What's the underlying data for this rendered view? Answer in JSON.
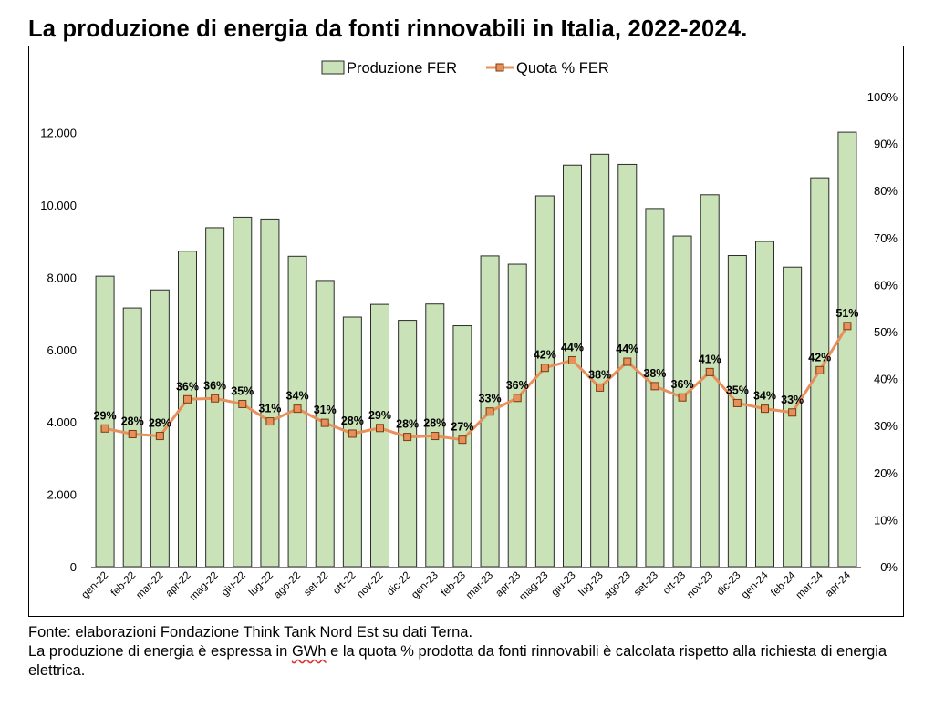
{
  "title": "La produzione di energia da fonti rinnovabili in Italia, 2022-2024.",
  "footnote": {
    "source": "Fonte: elaborazioni Fondazione Think Tank Nord Est su dati Terna.",
    "note_before": "La produzione di energia è espressa in ",
    "note_unit": "GWh",
    "note_after": " e la quota % prodotta da fonti rinnovabili è calcolata rispetto alla richiesta di energia elettrica."
  },
  "colors": {
    "bar_fill": "#c9e2b8",
    "bar_stroke": "#2b2b2b",
    "line": "#e8905a",
    "marker_fill": "#e8905a",
    "marker_stroke": "#7a3b12"
  },
  "chart_data": {
    "type": "bar",
    "categories": [
      "gen-22",
      "feb-22",
      "mar-22",
      "apr-22",
      "mag-22",
      "giu-22",
      "lug-22",
      "ago-22",
      "set-22",
      "ott-22",
      "nov-22",
      "dic-22",
      "gen-23",
      "feb-23",
      "mar-23",
      "apr-23",
      "mag-23",
      "giu-23",
      "lug-23",
      "ago-23",
      "set-23",
      "ott-23",
      "nov-23",
      "dic-23",
      "gen-24",
      "feb-24",
      "mar-24",
      "apr-24"
    ],
    "series": [
      {
        "name": "Produzione FER",
        "type": "bar",
        "axis": "left",
        "values": [
          8030,
          7150,
          7650,
          8720,
          9370,
          9660,
          9610,
          8580,
          7910,
          6900,
          7250,
          6810,
          7260,
          6660,
          8590,
          8360,
          10250,
          11100,
          11400,
          11120,
          9900,
          9140,
          10280,
          8600,
          8990,
          8280,
          10750,
          12010
        ]
      },
      {
        "name": "Quota % FER",
        "type": "line",
        "axis": "right",
        "values": [
          29.4,
          28.2,
          27.8,
          35.6,
          35.8,
          34.6,
          30.9,
          33.6,
          30.6,
          28.3,
          29.5,
          27.6,
          27.8,
          27.0,
          33.0,
          35.9,
          42.3,
          43.9,
          38.1,
          43.6,
          38.4,
          36.0,
          41.4,
          34.8,
          33.6,
          32.8,
          41.8,
          51.2
        ],
        "labels": [
          "29%",
          "28%",
          "28%",
          "36%",
          "36%",
          "35%",
          "31%",
          "34%",
          "31%",
          "28%",
          "29%",
          "28%",
          "28%",
          "27%",
          "33%",
          "36%",
          "42%",
          "44%",
          "38%",
          "44%",
          "38%",
          "36%",
          "41%",
          "35%",
          "34%",
          "33%",
          "42%",
          "51%"
        ]
      }
    ],
    "y_left": {
      "min": 0,
      "max": 13000,
      "ticks": [
        0,
        2000,
        4000,
        6000,
        8000,
        10000,
        12000
      ],
      "tick_labels": [
        "0",
        "2.000",
        "4.000",
        "6.000",
        "8.000",
        "10.000",
        "12.000"
      ]
    },
    "y_right": {
      "min": 0,
      "max": 100,
      "ticks": [
        0,
        10,
        20,
        30,
        40,
        50,
        60,
        70,
        80,
        90,
        100
      ],
      "tick_labels": [
        "0%",
        "10%",
        "20%",
        "30%",
        "40%",
        "50%",
        "60%",
        "70%",
        "80%",
        "90%",
        "100%"
      ]
    },
    "legend_position": "top-center",
    "grid": false
  }
}
